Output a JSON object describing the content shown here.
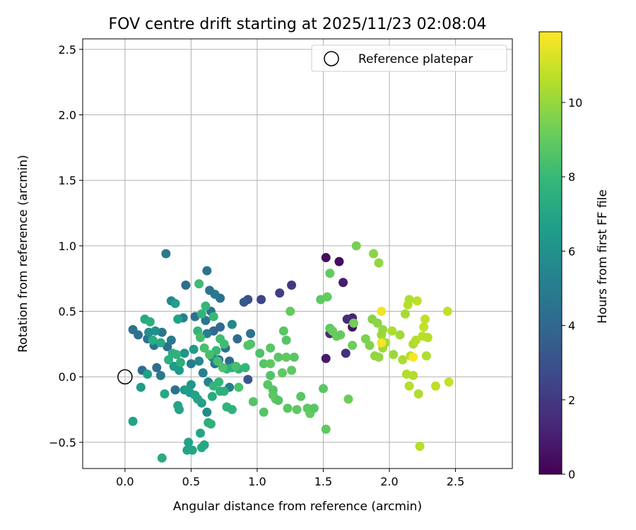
{
  "chart_data": {
    "type": "scatter",
    "title": "FOV centre drift starting at 2025/11/23 02:08:04",
    "xlabel": "Angular distance from reference (arcmin)",
    "ylabel": "Rotation from reference (arcmin)",
    "xlim": [
      -0.32,
      2.93
    ],
    "ylim": [
      -0.7,
      2.58
    ],
    "xticks": [
      0.0,
      0.5,
      1.0,
      1.5,
      2.0,
      2.5
    ],
    "xtick_labels": [
      "0.0",
      "0.5",
      "1.0",
      "1.5",
      "2.0",
      "2.5"
    ],
    "yticks": [
      -0.5,
      0.0,
      0.5,
      1.0,
      1.5,
      2.0,
      2.5
    ],
    "ytick_labels": [
      "−0.5",
      "0.0",
      "0.5",
      "1.0",
      "1.5",
      "2.0",
      "2.5"
    ],
    "grid": true,
    "legend": {
      "location": "top-right",
      "entries": [
        "Reference platepar"
      ]
    },
    "reference_point": {
      "x": 0.0,
      "y": 0.0,
      "label": "Reference platepar"
    },
    "colorbar": {
      "label": "Hours from first FF file",
      "min": 0,
      "max": 11.9,
      "ticks": [
        0,
        2,
        4,
        6,
        8,
        10
      ],
      "tick_labels": [
        "0",
        "2",
        "4",
        "6",
        "8",
        "10"
      ],
      "colormap": "viridis",
      "colors": [
        "#440154",
        "#482878",
        "#3e4989",
        "#31688e",
        "#26828e",
        "#1f9e89",
        "#35b779",
        "#6ece58",
        "#b5de2b",
        "#fde725"
      ]
    },
    "points": [
      [
        1.52,
        0.91,
        0.4
      ],
      [
        1.62,
        0.88,
        0.4
      ],
      [
        1.72,
        0.38,
        0.5
      ],
      [
        1.52,
        0.14,
        0.8
      ],
      [
        1.65,
        0.72,
        1.0
      ],
      [
        1.72,
        0.45,
        1.2
      ],
      [
        1.68,
        0.44,
        1.4
      ],
      [
        1.55,
        0.33,
        1.5
      ],
      [
        1.67,
        0.18,
        1.7
      ],
      [
        1.26,
        0.7,
        2.0
      ],
      [
        1.17,
        0.64,
        2.2
      ],
      [
        1.03,
        0.59,
        2.5
      ],
      [
        0.93,
        0.59,
        3.0
      ],
      [
        0.9,
        0.57,
        3.3
      ],
      [
        0.93,
        -0.02,
        3.2
      ],
      [
        0.62,
        0.81,
        4.6
      ],
      [
        0.46,
        0.7,
        4.2
      ],
      [
        0.31,
        0.94,
        4.8
      ],
      [
        0.06,
        0.36,
        4.5
      ],
      [
        0.1,
        0.32,
        4.4
      ],
      [
        0.22,
        0.24,
        4.6
      ],
      [
        0.28,
        0.34,
        4.7
      ],
      [
        0.32,
        0.23,
        4.3
      ],
      [
        0.35,
        0.28,
        4.9
      ],
      [
        0.17,
        0.29,
        4.5
      ],
      [
        0.24,
        0.07,
        4.3
      ],
      [
        0.13,
        0.05,
        4.2
      ],
      [
        0.38,
        -0.1,
        4.4
      ],
      [
        0.27,
        0.01,
        4.8
      ],
      [
        0.72,
        0.6,
        4.3
      ],
      [
        0.68,
        0.63,
        4.9
      ],
      [
        0.64,
        0.66,
        4.6
      ],
      [
        0.65,
        0.5,
        4.4
      ],
      [
        0.53,
        0.46,
        4.4
      ],
      [
        0.61,
        0.43,
        4.7
      ],
      [
        0.67,
        0.35,
        4.0
      ],
      [
        0.72,
        0.38,
        4.1
      ],
      [
        0.76,
        0.22,
        4.3
      ],
      [
        0.71,
        0.13,
        4.1
      ],
      [
        0.68,
        0.1,
        4.5
      ],
      [
        0.79,
        0.12,
        4.0
      ],
      [
        0.85,
        0.29,
        4.2
      ],
      [
        0.95,
        0.33,
        4.6
      ],
      [
        0.62,
        0.33,
        5.1
      ],
      [
        0.44,
        0.45,
        5.2
      ],
      [
        0.5,
        0.1,
        5.0
      ],
      [
        0.59,
        0.03,
        5.2
      ],
      [
        0.66,
        0.15,
        5.3
      ],
      [
        0.81,
        0.4,
        5.5
      ],
      [
        0.35,
        0.58,
        5.5
      ],
      [
        0.56,
        0.12,
        5.6
      ],
      [
        0.63,
        -0.04,
        5.4
      ],
      [
        0.79,
        -0.08,
        5.2
      ],
      [
        0.62,
        -0.27,
        5.7
      ],
      [
        0.18,
        0.34,
        5.8
      ],
      [
        0.23,
        0.35,
        6.0
      ],
      [
        0.45,
        0.18,
        6.2
      ],
      [
        0.52,
        0.21,
        6.5
      ],
      [
        0.38,
        0.56,
        6.6
      ],
      [
        0.4,
        0.44,
        6.8
      ],
      [
        0.17,
        0.02,
        6.7
      ],
      [
        0.12,
        -0.08,
        6.5
      ],
      [
        0.06,
        -0.34,
        6.8
      ],
      [
        0.5,
        -0.06,
        6.3
      ],
      [
        0.41,
        0.05,
        6.4
      ],
      [
        0.37,
        0.08,
        6.4
      ],
      [
        0.45,
        -0.1,
        6.5
      ],
      [
        0.49,
        -0.12,
        6.6
      ],
      [
        0.53,
        -0.14,
        6.9
      ],
      [
        0.55,
        -0.17,
        7.0
      ],
      [
        0.58,
        -0.2,
        6.8
      ],
      [
        0.4,
        -0.22,
        6.9
      ],
      [
        0.41,
        -0.25,
        7.0
      ],
      [
        0.3,
        -0.13,
        7.1
      ],
      [
        0.57,
        -0.43,
        7.0
      ],
      [
        0.48,
        -0.5,
        6.8
      ],
      [
        0.47,
        -0.56,
        6.9
      ],
      [
        0.51,
        -0.56,
        7.0
      ],
      [
        0.58,
        -0.54,
        7.2
      ],
      [
        0.6,
        -0.52,
        7.1
      ],
      [
        0.28,
        -0.62,
        7.3
      ],
      [
        0.63,
        -0.35,
        7.4
      ],
      [
        0.65,
        -0.36,
        7.6
      ],
      [
        0.66,
        -0.15,
        7.3
      ],
      [
        0.72,
        -0.11,
        7.6
      ],
      [
        0.75,
        -0.11,
        7.5
      ],
      [
        0.77,
        -0.23,
        7.7
      ],
      [
        0.81,
        -0.25,
        7.6
      ],
      [
        0.67,
        -0.07,
        7.8
      ],
      [
        0.71,
        -0.04,
        7.9
      ],
      [
        0.77,
        0.06,
        7.8
      ],
      [
        0.81,
        0.07,
        7.6
      ],
      [
        0.86,
        0.06,
        7.5
      ],
      [
        0.91,
        0.07,
        7.9
      ],
      [
        0.15,
        0.44,
        7.1
      ],
      [
        0.19,
        0.42,
        7.4
      ],
      [
        0.21,
        0.28,
        7.3
      ],
      [
        0.27,
        0.26,
        7.2
      ],
      [
        0.33,
        0.13,
        7.5
      ],
      [
        0.36,
        0.18,
        7.4
      ],
      [
        0.39,
        0.17,
        7.6
      ],
      [
        0.42,
        0.11,
        7.5
      ],
      [
        0.55,
        0.35,
        7.8
      ],
      [
        0.58,
        0.48,
        7.7
      ],
      [
        0.61,
        0.54,
        7.9
      ],
      [
        0.67,
        0.46,
        8.0
      ],
      [
        0.69,
        0.2,
        8.0
      ],
      [
        0.72,
        0.29,
        8.2
      ],
      [
        0.75,
        0.25,
        8.2
      ],
      [
        0.56,
        0.71,
        8.1
      ],
      [
        0.57,
        0.3,
        8.3
      ],
      [
        0.6,
        0.22,
        8.4
      ],
      [
        0.64,
        0.17,
        8.4
      ],
      [
        0.7,
        0.12,
        8.3
      ],
      [
        0.74,
        0.07,
        8.5
      ],
      [
        0.84,
        0.08,
        8.4
      ],
      [
        0.86,
        -0.08,
        8.5
      ],
      [
        0.93,
        0.24,
        8.6
      ],
      [
        0.95,
        0.25,
        8.6
      ],
      [
        0.97,
        -0.19,
        8.7
      ],
      [
        1.02,
        0.18,
        8.5
      ],
      [
        1.05,
        0.1,
        8.7
      ],
      [
        1.05,
        -0.27,
        8.7
      ],
      [
        1.08,
        -0.06,
        8.8
      ],
      [
        1.1,
        0.01,
        8.6
      ],
      [
        1.1,
        0.1,
        8.9
      ],
      [
        1.1,
        0.22,
        8.8
      ],
      [
        1.12,
        -0.1,
        8.7
      ],
      [
        1.12,
        -0.14,
        8.8
      ],
      [
        1.14,
        -0.17,
        8.9
      ],
      [
        1.16,
        -0.18,
        8.6
      ],
      [
        1.16,
        0.15,
        8.8
      ],
      [
        1.19,
        0.03,
        8.9
      ],
      [
        1.2,
        0.35,
        8.8
      ],
      [
        1.22,
        0.15,
        8.9
      ],
      [
        1.22,
        0.28,
        8.7
      ],
      [
        1.23,
        -0.24,
        8.8
      ],
      [
        1.25,
        0.5,
        9.0
      ],
      [
        1.26,
        0.05,
        8.9
      ],
      [
        1.28,
        0.15,
        8.8
      ],
      [
        1.3,
        -0.25,
        8.9
      ],
      [
        1.33,
        -0.15,
        8.8
      ],
      [
        1.38,
        -0.24,
        8.9
      ],
      [
        1.4,
        -0.28,
        9.0
      ],
      [
        1.43,
        -0.24,
        8.8
      ],
      [
        1.48,
        0.59,
        8.9
      ],
      [
        1.5,
        -0.09,
        8.8
      ],
      [
        1.52,
        -0.4,
        8.9
      ],
      [
        1.53,
        0.61,
        9.0
      ],
      [
        1.55,
        0.37,
        8.9
      ],
      [
        1.55,
        0.79,
        9.0
      ],
      [
        1.57,
        0.35,
        9.1
      ],
      [
        1.6,
        0.31,
        9.1
      ],
      [
        1.63,
        0.32,
        9.0
      ],
      [
        1.69,
        -0.17,
        9.2
      ],
      [
        1.72,
        0.24,
        9.2
      ],
      [
        1.73,
        0.41,
        9.3
      ],
      [
        1.75,
        1.0,
        9.4
      ],
      [
        1.82,
        0.29,
        9.5
      ],
      [
        1.85,
        0.24,
        9.6
      ],
      [
        1.87,
        0.44,
        9.7
      ],
      [
        1.88,
        0.94,
        9.8
      ],
      [
        1.89,
        0.16,
        9.9
      ],
      [
        1.91,
        0.41,
        9.8
      ],
      [
        1.92,
        0.87,
        9.9
      ],
      [
        1.92,
        0.15,
        10.0
      ],
      [
        1.94,
        0.32,
        10.1
      ],
      [
        1.95,
        0.36,
        10.0
      ],
      [
        1.95,
        0.22,
        10.2
      ],
      [
        1.97,
        0.26,
        10.3
      ],
      [
        2.02,
        0.35,
        10.4
      ],
      [
        2.03,
        0.17,
        10.1
      ],
      [
        2.08,
        0.32,
        10.2
      ],
      [
        2.1,
        0.13,
        10.4
      ],
      [
        2.12,
        0.48,
        10.3
      ],
      [
        2.13,
        0.02,
        10.5
      ],
      [
        2.14,
        0.55,
        10.6
      ],
      [
        2.15,
        0.59,
        10.5
      ],
      [
        2.15,
        -0.07,
        10.6
      ],
      [
        2.16,
        0.16,
        10.7
      ],
      [
        2.18,
        0.25,
        10.4
      ],
      [
        2.18,
        0.01,
        10.5
      ],
      [
        2.2,
        0.28,
        10.6
      ],
      [
        2.21,
        0.58,
        10.7
      ],
      [
        2.22,
        -0.13,
        10.5
      ],
      [
        2.23,
        -0.53,
        10.6
      ],
      [
        2.25,
        0.31,
        10.7
      ],
      [
        2.26,
        0.38,
        10.8
      ],
      [
        2.27,
        0.44,
        10.8
      ],
      [
        2.28,
        0.16,
        10.5
      ],
      [
        2.29,
        0.3,
        10.6
      ],
      [
        2.35,
        -0.07,
        10.7
      ],
      [
        2.44,
        0.5,
        10.8
      ],
      [
        2.45,
        -0.04,
        10.9
      ],
      [
        1.94,
        0.5,
        11.6
      ],
      [
        1.94,
        0.26,
        11.7
      ],
      [
        2.18,
        0.15,
        11.8
      ]
    ]
  }
}
